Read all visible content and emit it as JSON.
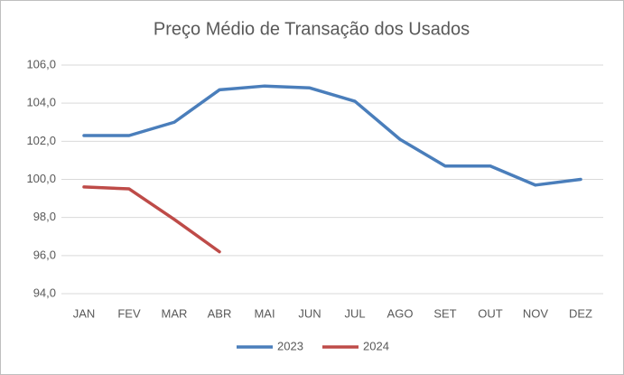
{
  "chart_data": {
    "type": "line",
    "title": "Preço Médio de Transação dos Usados",
    "categories": [
      "JAN",
      "FEV",
      "MAR",
      "ABR",
      "MAI",
      "JUN",
      "JUL",
      "AGO",
      "SET",
      "OUT",
      "NOV",
      "DEZ"
    ],
    "series": [
      {
        "name": "2023",
        "color": "#4a7ebb",
        "values": [
          102.3,
          102.3,
          103.0,
          104.7,
          104.9,
          104.8,
          104.1,
          102.1,
          100.7,
          100.7,
          99.7,
          100.0
        ]
      },
      {
        "name": "2024",
        "color": "#be4b48",
        "values": [
          99.6,
          99.5,
          97.9,
          96.2,
          null,
          null,
          null,
          null,
          null,
          null,
          null,
          null
        ]
      }
    ],
    "ylim": [
      94,
      106
    ],
    "yticks": [
      {
        "value": 94,
        "label": "94,0"
      },
      {
        "value": 96,
        "label": "96,0"
      },
      {
        "value": 98,
        "label": "98,0"
      },
      {
        "value": 100,
        "label": "100,0"
      },
      {
        "value": 102,
        "label": "102,0"
      },
      {
        "value": 104,
        "label": "104,0"
      },
      {
        "value": 106,
        "label": "106,0"
      }
    ],
    "grid": true,
    "legend": "bottom"
  }
}
